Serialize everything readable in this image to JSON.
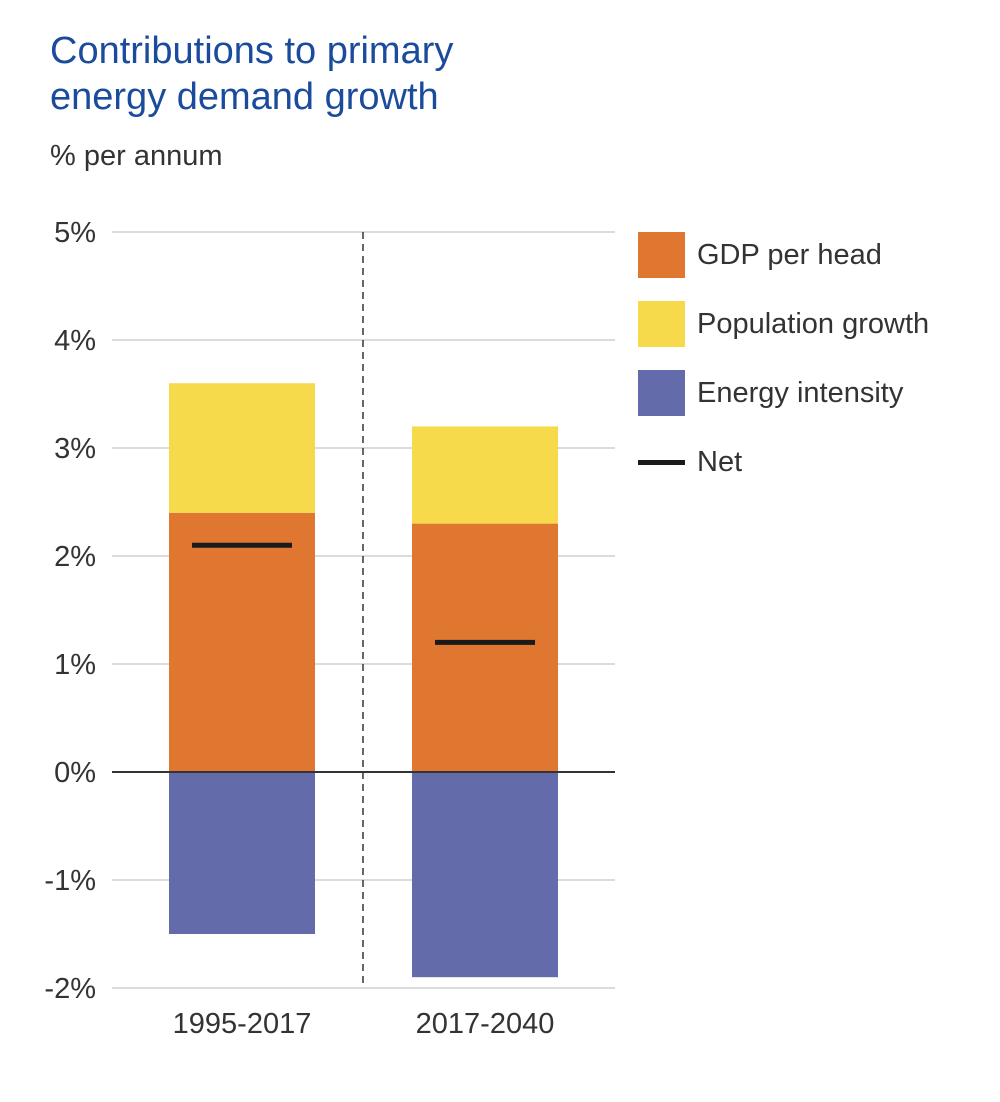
{
  "title_line1": "Contributions to primary",
  "title_line2": "energy demand growth",
  "subtitle": "% per annum",
  "chart_data": {
    "type": "bar",
    "stacked": true,
    "categories": [
      "1995-2017",
      "2017-2040"
    ],
    "series": [
      {
        "name": "GDP per head",
        "color": "#e07731",
        "values": [
          2.4,
          2.3
        ]
      },
      {
        "name": "Population growth",
        "color": "#f7da4b",
        "values": [
          1.2,
          0.9
        ]
      },
      {
        "name": "Energy intensity",
        "color": "#646bab",
        "values": [
          -1.5,
          -1.9
        ]
      }
    ],
    "net": {
      "name": "Net",
      "color": "#1a1a1a",
      "values": [
        2.1,
        1.2
      ]
    },
    "ylim": [
      -2,
      5
    ],
    "yticks": [
      5,
      4,
      3,
      2,
      1,
      0,
      -1,
      -2
    ],
    "ytick_labels": [
      "5%",
      "4%",
      "3%",
      "2%",
      "1%",
      "0%",
      "-1%",
      "-2%"
    ],
    "grid": true,
    "legend_position": "right"
  }
}
